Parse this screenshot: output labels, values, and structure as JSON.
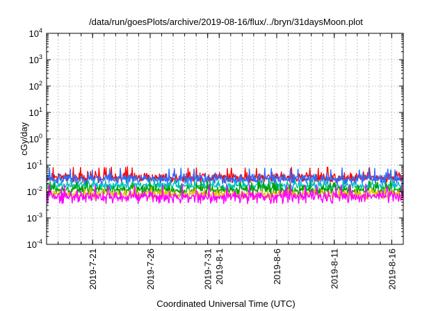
{
  "chart_data": {
    "type": "line",
    "title": "/data/run/goesPlots/archive/2019-08-16/flux/../bryn/31daysMoon.plot",
    "xlabel": "Coordinated Universal Time (UTC)",
    "ylabel": "cGy/day",
    "yscale": "log",
    "ylim": [
      0.0001,
      10000
    ],
    "yticks": [
      {
        "base": "10",
        "exp": "-4",
        "value": 0.0001
      },
      {
        "base": "10",
        "exp": "-3",
        "value": 0.001
      },
      {
        "base": "10",
        "exp": "-2",
        "value": 0.01
      },
      {
        "base": "10",
        "exp": "-1",
        "value": 0.1
      },
      {
        "base": "10",
        "exp": "0",
        "value": 1
      },
      {
        "base": "10",
        "exp": "1",
        "value": 10
      },
      {
        "base": "10",
        "exp": "2",
        "value": 100
      },
      {
        "base": "10",
        "exp": "3",
        "value": 1000
      },
      {
        "base": "10",
        "exp": "4",
        "value": 10000
      }
    ],
    "xlim": [
      "2019-07-17",
      "2019-08-17"
    ],
    "xticks": [
      {
        "label": "2019-7-21",
        "date": "2019-07-21"
      },
      {
        "label": "2019-7-26",
        "date": "2019-07-26"
      },
      {
        "label": "2019-7-31",
        "date": "2019-07-31"
      },
      {
        "label": "2019-8-1",
        "date": "2019-08-01"
      },
      {
        "label": "2019-8-6",
        "date": "2019-08-06"
      },
      {
        "label": "2019-8-11",
        "date": "2019-08-11"
      },
      {
        "label": "2019-8-16",
        "date": "2019-08-16"
      }
    ],
    "grid": true,
    "legend": "none",
    "series": [
      {
        "color": "#ff0000",
        "x_start": "2019-07-17",
        "x_end": "2019-08-17",
        "y_median": 0.035,
        "y_min": 0.022,
        "y_max": 0.09
      },
      {
        "color": "#2a6bff",
        "x_start": "2019-07-17",
        "x_end": "2019-08-17",
        "y_median": 0.03,
        "y_min": 0.018,
        "y_max": 0.08
      },
      {
        "color": "#00c0c0",
        "x_start": "2019-07-17",
        "x_end": "2019-08-17",
        "y_median": 0.017,
        "y_min": 0.01,
        "y_max": 0.03
      },
      {
        "color": "#00a000",
        "x_start": "2019-07-17",
        "x_end": "2019-08-17",
        "y_median": 0.012,
        "y_min": 0.007,
        "y_max": 0.025
      },
      {
        "color": "#e0c000",
        "x_start": "2019-07-17",
        "x_end": "2019-08-17",
        "y_median": 0.008,
        "y_min": 0.005,
        "y_max": 0.015
      },
      {
        "color": "#ff00ff",
        "x_start": "2019-07-17",
        "x_end": "2019-08-17",
        "y_median": 0.0065,
        "y_min": 0.0035,
        "y_max": 0.02
      }
    ]
  }
}
